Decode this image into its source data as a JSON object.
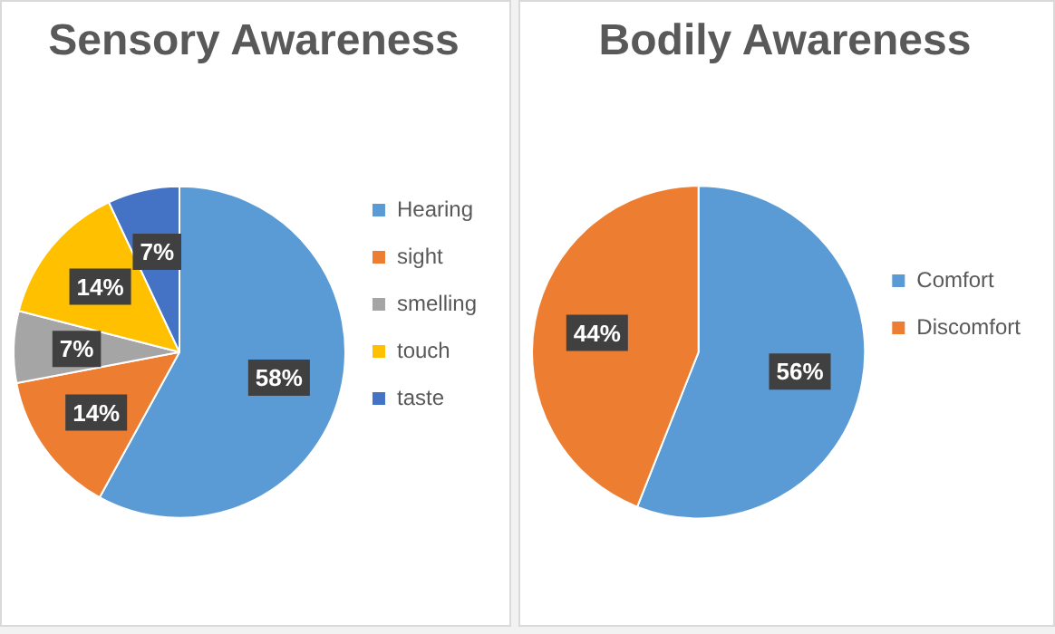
{
  "chart_data": [
    {
      "type": "pie",
      "title": "Sensory Awareness",
      "categories": [
        "Hearing",
        "sight",
        "smelling",
        "touch",
        "taste"
      ],
      "values": [
        58,
        14,
        7,
        14,
        7
      ],
      "value_labels": [
        "58%",
        "14%",
        "7%",
        "14%",
        "7%"
      ],
      "colors": [
        "#5b9bd5",
        "#ed7d31",
        "#a5a5a5",
        "#ffc000",
        "#4472c4"
      ],
      "legend": "right"
    },
    {
      "type": "pie",
      "title": "Bodily Awareness",
      "categories": [
        "Comfort",
        "Discomfort"
      ],
      "values": [
        56,
        44
      ],
      "value_labels": [
        "56%",
        "44%"
      ],
      "colors": [
        "#5b9bd5",
        "#ed7d31"
      ],
      "legend": "right"
    }
  ]
}
